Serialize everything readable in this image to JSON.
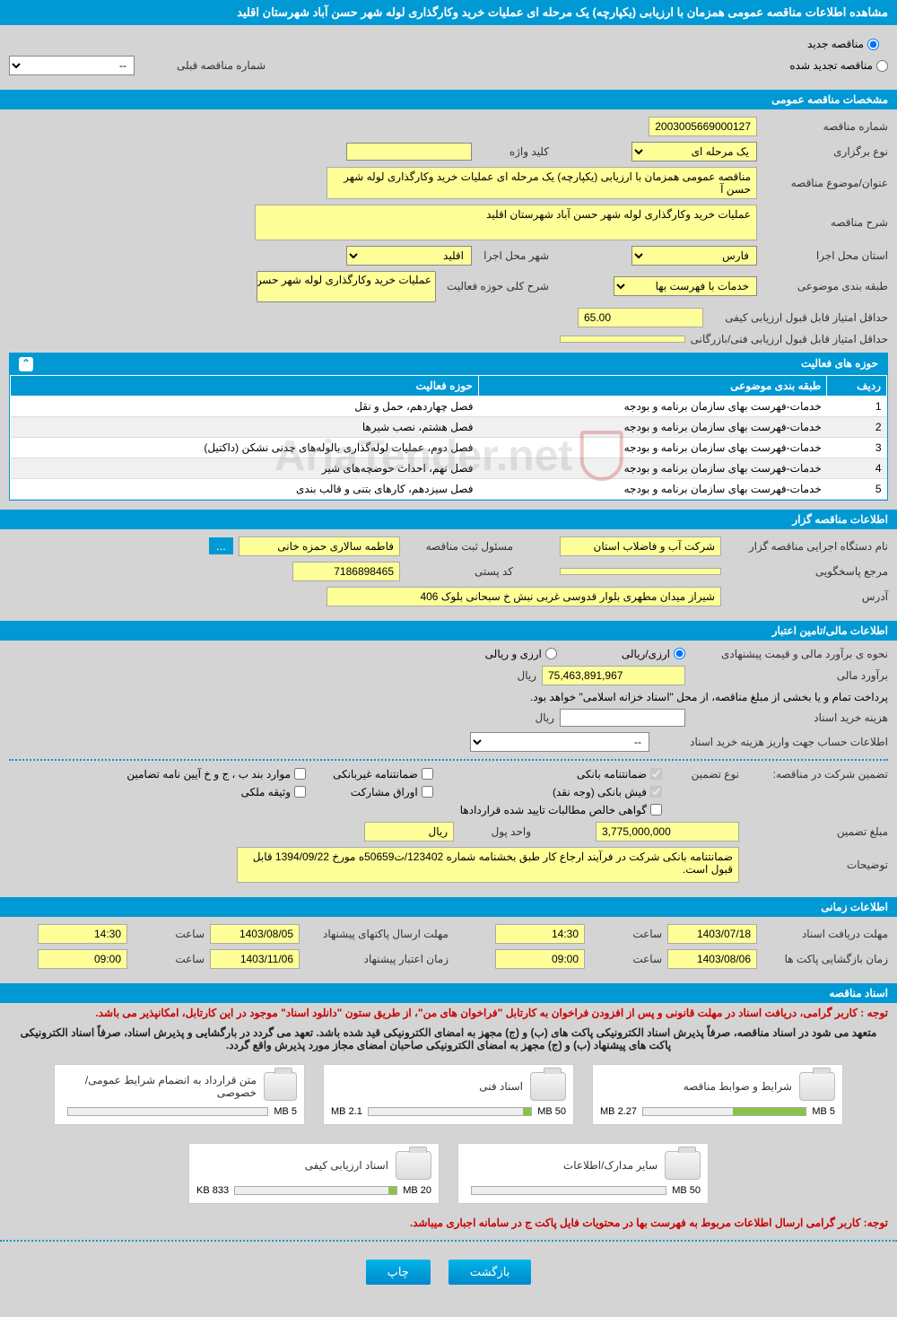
{
  "page_title": "مشاهده اطلاعات مناقصه عمومی همزمان با ارزیابی (یکپارچه) یک مرحله ای عملیات خرید وکارگذاری لوله شهر حسن آباد شهرستان اقلید",
  "top_radio": {
    "new": "مناقصه جدید",
    "renewed": "مناقصه تجدید شده",
    "prev_number_label": "شماره مناقصه قبلی",
    "prev_number_value": "--"
  },
  "sections": {
    "general": "مشخصات مناقصه عمومی",
    "holder": "اطلاعات مناقصه گزار",
    "financial": "اطلاعات مالی/تامین اعتبار",
    "timing": "اطلاعات زمانی",
    "docs": "اسناد مناقصه"
  },
  "general": {
    "tender_no_lbl": "شماره مناقصه",
    "tender_no": "2003005669000127",
    "type_lbl": "نوع برگزاری",
    "type": "یک مرحله ای",
    "keyword_lbl": "کلید واژه",
    "keyword": "",
    "subject_lbl": "عنوان/موضوع مناقصه",
    "subject": "مناقصه عمومی همزمان با ارزیابی (یکپارچه) یک مرحله ای عملیات خرید وکارگذاری لوله شهر حسن آ",
    "desc_lbl": "شرح مناقصه",
    "desc": "عملیات خرید وکارگذاری لوله شهر حسن آباد شهرستان اقلید",
    "province_lbl": "استان محل اجرا",
    "province": "فارس",
    "city_lbl": "شهر محل اجرا",
    "city": "اقلید",
    "category_lbl": "طبقه بندی موضوعی",
    "category": "خدمات با فهرست بها",
    "activity_desc_lbl": "شرح کلی حوزه فعالیت",
    "activity_desc": "عملیات خرید وکارگذاری لوله شهر حسن آباد",
    "min_qual_lbl": "حداقل امتیاز قابل قبول ارزیابی کیفی",
    "min_qual": "65.00",
    "min_tech_lbl": "حداقل امتیاز قابل قبول ارزیابی فنی/بازرگانی",
    "min_tech": ""
  },
  "activity_table": {
    "title": "حوزه های فعالیت",
    "cols": [
      "ردیف",
      "طبقه بندی موضوعی",
      "حوزه فعالیت"
    ],
    "rows": [
      [
        "1",
        "خدمات-فهرست بهای سازمان برنامه و بودجه",
        "فصل چهاردهم، حمل و نقل"
      ],
      [
        "2",
        "خدمات-فهرست بهای سازمان برنامه و بودجه",
        "فصل هشتم، نصب شیرها"
      ],
      [
        "3",
        "خدمات-فهرست بهای سازمان برنامه و بودجه",
        "فصل دوم، عملیات لوله‌گذاری بالوله‌های چدنی نشکن (داکتیل)"
      ],
      [
        "4",
        "خدمات-فهرست بهای سازمان برنامه و بودجه",
        "فصل نهم، احداث حوضچه‌های شیر"
      ],
      [
        "5",
        "خدمات-فهرست بهای سازمان برنامه و بودجه",
        "فصل سیزدهم، کارهای بتنی و قالب بندی"
      ]
    ]
  },
  "holder": {
    "org_lbl": "نام دستگاه اجرایی مناقصه گزار",
    "org": "شرکت آب و فاضلاب استان",
    "reg_lbl": "مسئول ثبت مناقصه",
    "reg": "فاطمه سالاری حمزه خانی",
    "more": "...",
    "ref_lbl": "مرجع پاسخگویی",
    "ref": "",
    "post_lbl": "کد پستی",
    "post": "7186898465",
    "addr_lbl": "آدرس",
    "addr": "شیراز میدان مطهری بلوار قدوسی غربی نبش خ سبحانی بلوک 406"
  },
  "financial": {
    "method_lbl": "نحوه ی برآورد مالی و قیمت پیشنهادی",
    "opt_rial": "ارزی/ریالی",
    "opt_currency": "ارزی و ریالی",
    "estimate_lbl": "برآورد مالی",
    "estimate": "75,463,891,967",
    "unit": "ریال",
    "pay_note": "پرداخت تمام و یا بخشی از مبلغ مناقصه، از محل \"اسناد خزانه اسلامی\" خواهد بود.",
    "cost_lbl": "هزینه خرید اسناد",
    "cost": "",
    "acct_lbl": "اطلاعات حساب جهت واریز هزینه خرید اسناد",
    "acct": "--",
    "guarantee_lbl": "تضمین شرکت در مناقصه:",
    "guarantee_type_lbl": "نوع تضمین",
    "chk_bank": "ضمانتنامه بانکی",
    "chk_nonbank": "ضمانتنامه غیربانکی",
    "chk_clause": "موارد بند ب ، ج و خ آیین نامه تضامین",
    "chk_cash": "فیش بانکی (وجه نقد)",
    "chk_bonds": "اوراق مشارکت",
    "chk_property": "وثیقه ملکی",
    "chk_net": "گواهی خالص مطالبات تایید شده قراردادها",
    "amount_lbl": "مبلغ تضمین",
    "amount": "3,775,000,000",
    "unit2_lbl": "واحد پول",
    "unit2": "ریال",
    "notes_lbl": "توضیحات",
    "notes": "ضمانتنامه بانکی شرکت در فرآیند ارجاع کار طبق بخشنامه شماره 123402/ت50659ه مورخ 1394/09/22 قابل قبول است."
  },
  "timing": {
    "receive_lbl": "مهلت دریافت اسناد",
    "receive_date": "1403/07/18",
    "receive_time": "14:30",
    "send_lbl": "مهلت ارسال پاکتهای پیشنهاد",
    "send_date": "1403/08/05",
    "send_time": "14:30",
    "open_lbl": "زمان بازگشایی پاکت ها",
    "open_date": "1403/08/06",
    "open_time": "09:00",
    "valid_lbl": "زمان اعتبار پیشنهاد",
    "valid_date": "1403/11/06",
    "valid_time": "09:00",
    "time_lbl": "ساعت"
  },
  "docs": {
    "notice1": "توجه : کاربر گرامی، دریافت اسناد در مهلت قانونی و پس از افزودن فراخوان به کارتابل \"فراخوان های من\"، از طریق ستون \"دانلود اسناد\" موجود در این کارتابل، امکانپذیر می باشد.",
    "notice2": "متعهد می شود در اسناد مناقصه، صرفاً پذیرش اسناد الکترونیکی پاکت های (ب) و (ج) مجهز به امضای الکترونیکی قید شده باشد. تعهد می گردد در بارگشایی و پذیرش اسناد، صرفاً اسناد الکترونیکی پاکت های پیشنهاد (ب) و (ج) مجهز به امضای الکترونیکی صاحبان امضای مجاز مورد پذیرش واقع گردد.",
    "notice3": "توجه: کاربر گرامی ارسال اطلاعات مربوط به فهرست بها در محتویات فایل پاکت ج در سامانه اجباری میباشد.",
    "cards": [
      {
        "title": "شرایط و ضوابط مناقصه",
        "size": "2.27 MB",
        "cap": "5 MB",
        "fill": 45
      },
      {
        "title": "اسناد فنی",
        "size": "2.1 MB",
        "cap": "50 MB",
        "fill": 5
      },
      {
        "title": "متن قرارداد به انضمام شرایط عمومی/خصوصی",
        "size": "",
        "cap": "5 MB",
        "fill": 0
      },
      {
        "title": "سایر مدارک/اطلاعات",
        "size": "",
        "cap": "50 MB",
        "fill": 0
      },
      {
        "title": "اسناد ارزیابی کیفی",
        "size": "833 KB",
        "cap": "20 MB",
        "fill": 5
      }
    ]
  },
  "buttons": {
    "back": "بازگشت",
    "print": "چاپ"
  },
  "watermark": "AriaTender.net",
  "colors": {
    "header": "#0099d4",
    "yellow": "#ffff99",
    "btn": "#0099d4"
  }
}
